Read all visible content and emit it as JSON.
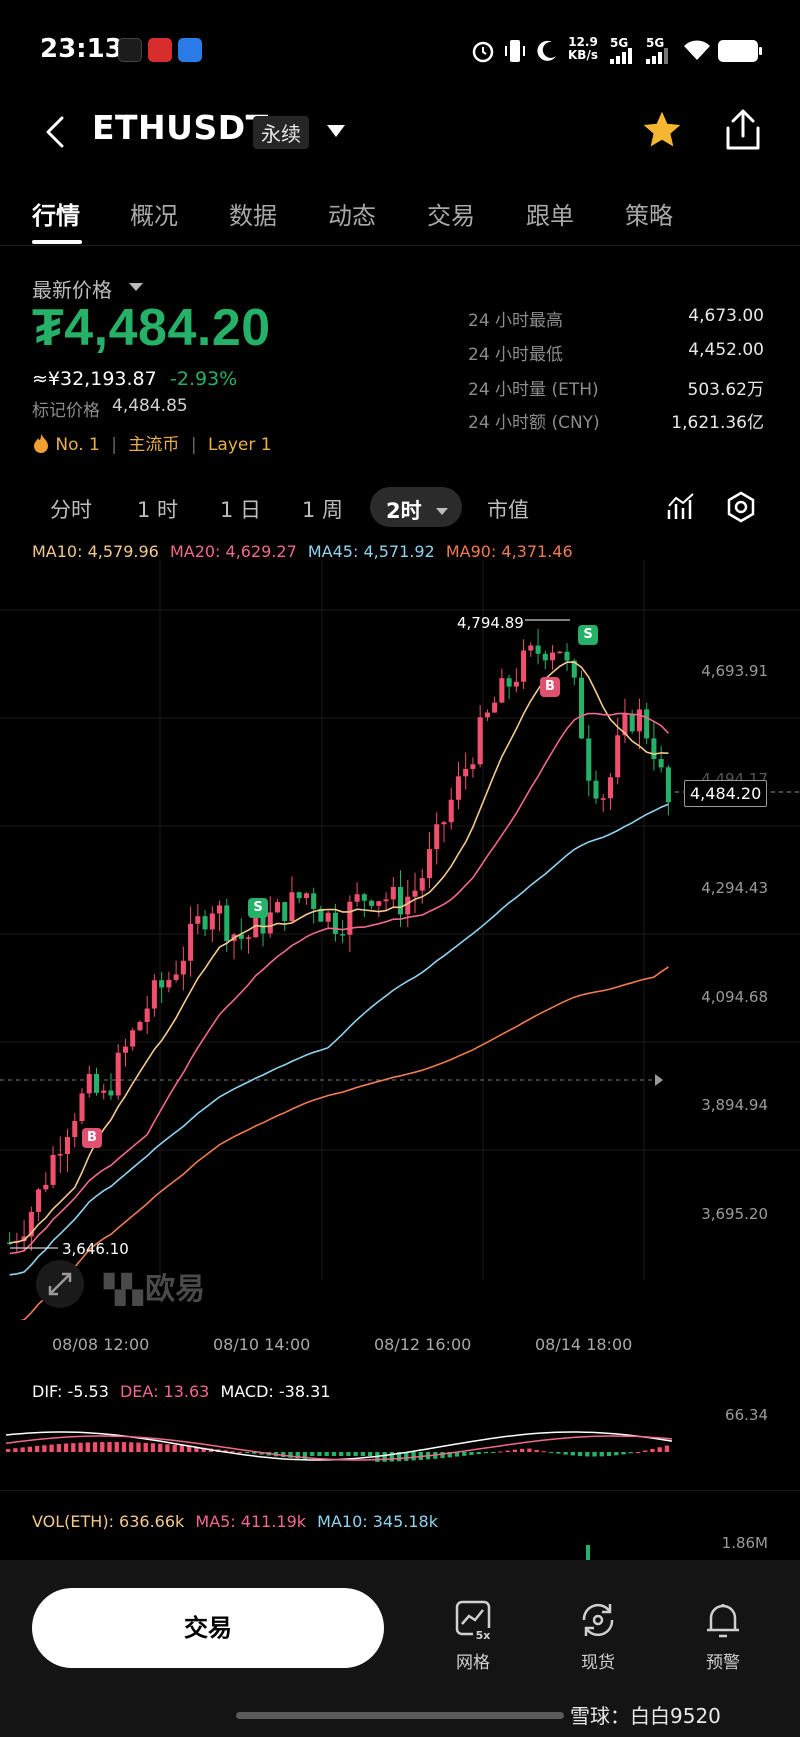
{
  "status_bar": {
    "time": "23:13",
    "net_speed_value": "12.9",
    "net_speed_unit": "KB/s",
    "signal1": "5G",
    "signal2": "5G",
    "icons": [
      "alarm-icon",
      "vibrate-icon",
      "moon-icon",
      "signal-icon",
      "wifi-icon",
      "battery-icon"
    ]
  },
  "header": {
    "title": "ETHUSDT",
    "badge": "永续",
    "back_icon": "chevron-left-icon",
    "dropdown_icon": "triangle-down-icon",
    "favorite_icon": "star-icon",
    "share_icon": "share-icon",
    "star_color": "#f5b731"
  },
  "tabs": [
    {
      "label": "行情",
      "active": true
    },
    {
      "label": "概况"
    },
    {
      "label": "数据"
    },
    {
      "label": "动态"
    },
    {
      "label": "交易"
    },
    {
      "label": "跟单"
    },
    {
      "label": "策略"
    }
  ],
  "price": {
    "label": "最新价格",
    "value": "₮4,484.20",
    "cny": "≈¥32,193.87",
    "change": "-2.93%",
    "mark_label": "标记价格",
    "mark_value": "4,484.85",
    "tags": [
      "No. 1",
      "主流币",
      "Layer 1"
    ],
    "color": "#25b268"
  },
  "stats": [
    {
      "label": "24 小时最高",
      "value": "4,673.00"
    },
    {
      "label": "24 小时最低",
      "value": "4,452.00"
    },
    {
      "label": "24 小时量 (ETH)",
      "value": "503.62万"
    },
    {
      "label": "24 小时额 (CNY)",
      "value": "1,621.36亿"
    }
  ],
  "intervals": {
    "items": [
      "分时",
      "1 时",
      "1 日",
      "1 周"
    ],
    "active": "2时",
    "extra": "市值",
    "icons": [
      "indicator-icon",
      "settings-icon"
    ]
  },
  "ma_legend": [
    {
      "label": "MA10: 4,579.96",
      "color": "#f3c98b"
    },
    {
      "label": "MA20: 4,629.27",
      "color": "#f06a8a"
    },
    {
      "label": "MA45: 4,571.92",
      "color": "#8fd3ee"
    },
    {
      "label": "MA90: 4,371.46",
      "color": "#f07b52"
    }
  ],
  "chart": {
    "price_axis": [
      "4,693.91",
      "4,494.17",
      "4,294.43",
      "4,094.68",
      "3,894.94",
      "3,695.20"
    ],
    "current_price": "4,484.20",
    "high_label": "4,794.89",
    "low_label": "3,646.10",
    "time_axis": [
      "08/08 12:00",
      "08/10 14:00",
      "08/12 16:00",
      "08/14 18:00"
    ],
    "watermark": "欧易",
    "buy_label": "B",
    "sell_label": "S",
    "up_color": "#f0506e",
    "down_color": "#25b268"
  },
  "chart_data": {
    "type": "candlestick",
    "interval": "2时",
    "ylim": [
      3646.1,
      4794.89
    ],
    "x_ticks": [
      "08/08 12:00",
      "08/10 14:00",
      "08/12 16:00",
      "08/14 18:00"
    ],
    "close_trend": [
      3660,
      3700,
      3760,
      3840,
      3900,
      3950,
      3930,
      4000,
      4060,
      4120,
      4150,
      4200,
      4260,
      4300,
      4250,
      4230,
      4260,
      4280,
      4300,
      4320,
      4280,
      4260,
      4300,
      4320,
      4310,
      4300,
      4330,
      4400,
      4480,
      4550,
      4620,
      4680,
      4720,
      4760,
      4780,
      4790,
      4700,
      4540,
      4500,
      4620,
      4660,
      4600,
      4484.2
    ]
  },
  "macd": {
    "dif": "DIF: -5.53",
    "dea": "DEA: 13.63",
    "macd": "MACD: -38.31",
    "axis": "66.34"
  },
  "volume": {
    "vol": "VOL(ETH): 636.66k",
    "ma5": "MA5: 411.19k",
    "ma10": "MA10: 345.18k",
    "axis": "1.86M"
  },
  "bottom_bar": {
    "trade": "交易",
    "grid": "网格",
    "grid_badge": "5x",
    "spot": "现货",
    "alert": "预警"
  },
  "watermark_footer": "雪球：白白9520"
}
